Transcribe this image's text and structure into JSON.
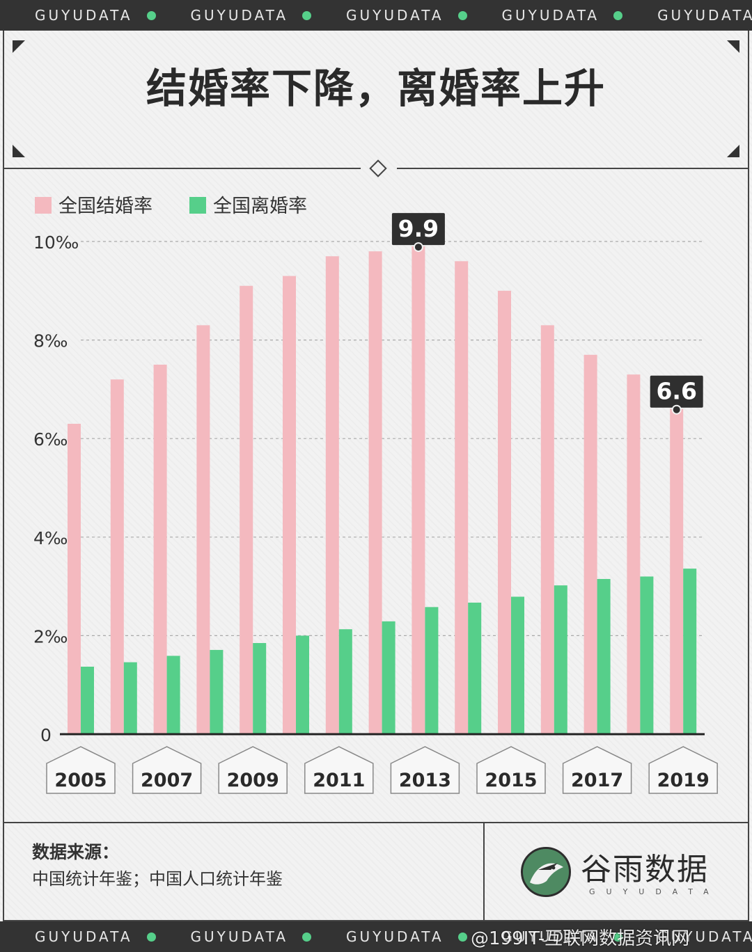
{
  "ticker": {
    "word": "GUYUDATA",
    "dot_color": "#56cf8a"
  },
  "title": "结婚率下降，离婚率上升",
  "chart_data": {
    "type": "bar",
    "title": "结婚率下降，离婚率上升",
    "ylabel": "",
    "xlabel": "",
    "ylim": [
      0,
      10
    ],
    "yticks": [
      "0",
      "2‰",
      "4‰",
      "6‰",
      "8‰",
      "10‰"
    ],
    "ytick_values": [
      0,
      2,
      4,
      6,
      8,
      10
    ],
    "grid": true,
    "legend_position": "top-left",
    "categories": [
      "2005",
      "2006",
      "2007",
      "2008",
      "2009",
      "2010",
      "2011",
      "2012",
      "2013",
      "2014",
      "2015",
      "2016",
      "2017",
      "2018",
      "2019"
    ],
    "x_tick_labels": [
      "2005",
      "2007",
      "2009",
      "2011",
      "2013",
      "2015",
      "2017",
      "2019"
    ],
    "series": [
      {
        "name": "全国结婚率",
        "color": "#f4b9bf",
        "values": [
          6.3,
          7.2,
          7.5,
          8.3,
          9.1,
          9.3,
          9.7,
          9.8,
          9.9,
          9.6,
          9.0,
          8.3,
          7.7,
          7.3,
          6.6
        ]
      },
      {
        "name": "全国离婚率",
        "color": "#56cf8a",
        "values": [
          1.37,
          1.46,
          1.59,
          1.71,
          1.85,
          2.0,
          2.13,
          2.29,
          2.58,
          2.67,
          2.79,
          3.02,
          3.15,
          3.2,
          3.36
        ]
      }
    ],
    "annotations": [
      {
        "category": "2013",
        "series": "全国结婚率",
        "label": "9.9"
      },
      {
        "category": "2019",
        "series": "全国结婚率",
        "label": "6.6"
      }
    ]
  },
  "footer": {
    "source_title": "数据来源：",
    "source_text": "中国统计年鉴；中国人口统计年鉴",
    "logo_name": "谷雨数据",
    "logo_sub": "GUYUDATA",
    "logo_icon": "bird-icon"
  },
  "watermark": "@199IT-互联网数据资讯网"
}
